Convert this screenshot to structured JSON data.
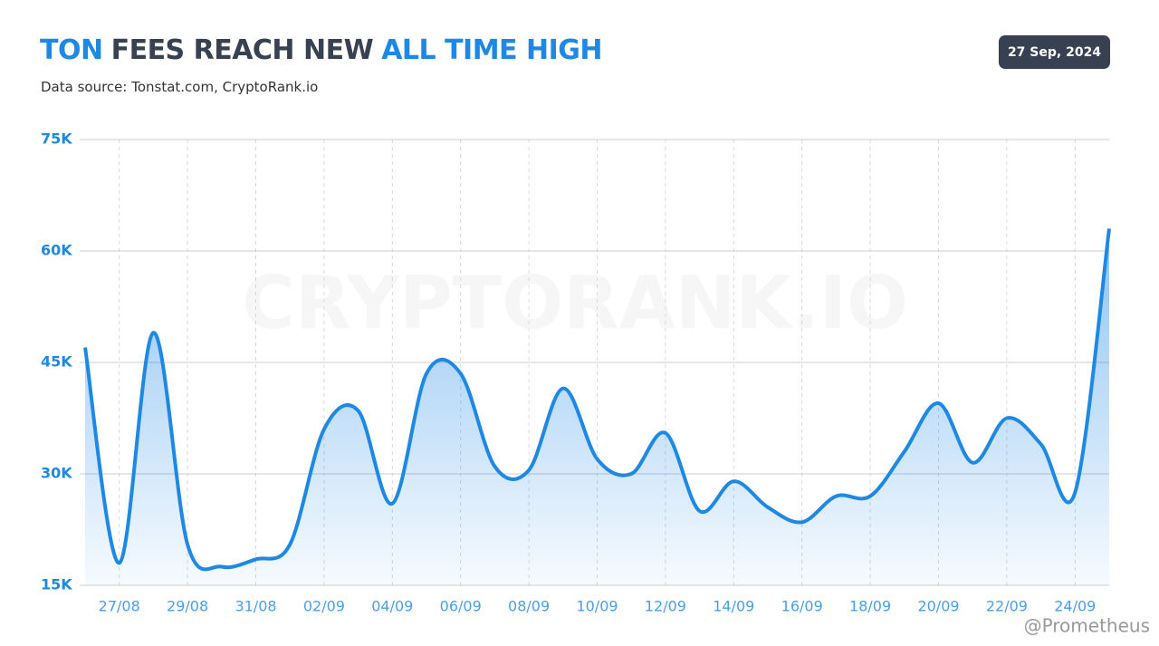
{
  "chart_data": {
    "type": "line",
    "title": [
      "TON",
      "FEES REACH NEW",
      "ALL TIME HIGH"
    ],
    "subtitle": "Data source: Tonstat.com, CryptoRank.io",
    "date": "27 Sep, 2024",
    "watermark": "CRYPTORANK.IO",
    "credit": "@Prometheus",
    "categories": [
      null,
      "27/08",
      null,
      "29/08",
      null,
      "31/08",
      null,
      "02/09",
      null,
      "04/09",
      null,
      "06/09",
      null,
      "08/09",
      null,
      "10/09",
      null,
      "12/09",
      null,
      "14/09",
      null,
      "16/09",
      null,
      "18/09",
      null,
      "20/09",
      null,
      "22/09",
      null,
      "24/09",
      null
    ],
    "series": [
      {
        "name": "Fees",
        "color": "#1e88e5",
        "values": [
          47000,
          18000,
          49000,
          20500,
          17500,
          18500,
          20500,
          36000,
          38500,
          26000,
          43500,
          43500,
          31000,
          30500,
          41500,
          32000,
          30000,
          35500,
          25000,
          29000,
          25500,
          23500,
          27000,
          27000,
          33000,
          39500,
          31500,
          37500,
          34000,
          27500,
          63000
        ]
      }
    ],
    "ylim": [
      15000,
      75000
    ],
    "yticks": [
      {
        "value": 15000,
        "label": "15K"
      },
      {
        "value": 30000,
        "label": "30K"
      },
      {
        "value": 45000,
        "label": "45K"
      },
      {
        "value": 60000,
        "label": "60K"
      },
      {
        "value": 75000,
        "label": "75K"
      }
    ],
    "grid": true
  }
}
